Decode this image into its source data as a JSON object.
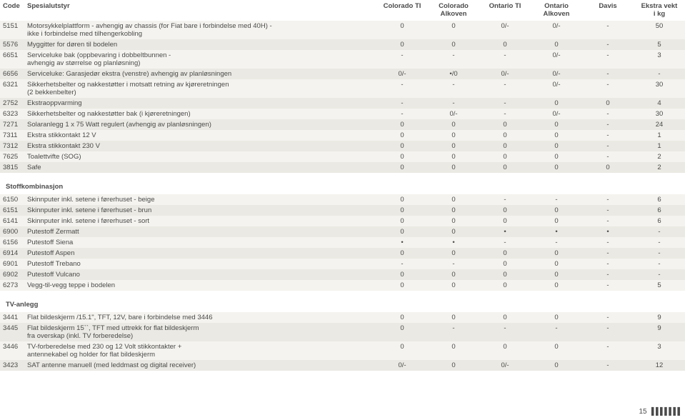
{
  "colors": {
    "odd": "#f4f3ef",
    "even": "#eae9e3",
    "text": "#4a4a4a"
  },
  "header": {
    "code": "Code",
    "spec": "Spesialutstyr",
    "cols_top": [
      "Colorado TI",
      "Colorado",
      "Ontario TI",
      "Ontario",
      "Davis",
      "Ekstra vekt"
    ],
    "cols_bot": [
      "",
      "Alkoven",
      "",
      "Alkoven",
      "",
      "i kg"
    ]
  },
  "rows1": [
    {
      "code": "5151",
      "desc": "Motorsykkelplattform - avhengig av chassis (for Fiat bare i forbindelse med 40H) -\nikke i forbindelse med tilhengerkobling",
      "v": [
        "0",
        "0",
        "0/-",
        "0/-",
        "-",
        "50"
      ]
    },
    {
      "code": "5576",
      "desc": "Myggitter for døren til bodelen",
      "v": [
        "0",
        "0",
        "0",
        "0",
        "-",
        "5"
      ]
    },
    {
      "code": "6651",
      "desc": "Serviceluke bak (oppbevaring i dobbeltbunnen -\navhengig av størrelse og planløsning)",
      "v": [
        "-",
        "-",
        "-",
        "0/-",
        "-",
        "3"
      ]
    },
    {
      "code": "6656",
      "desc": "Serviceluke: Garasjedør ekstra  (venstre) avhengig av planløsningen",
      "v": [
        "0/-",
        "•/0",
        "0/-",
        "0/-",
        "-",
        "-"
      ]
    },
    {
      "code": "6321",
      "desc": "Sikkerhetsbelter og nakkestøtter i motsatt retning av kjøreretningen\n(2 bekkenbelter)",
      "v": [
        "-",
        "-",
        "-",
        "0/-",
        "-",
        "30"
      ]
    },
    {
      "code": "2752",
      "desc": "Ekstraoppvarming",
      "v": [
        "-",
        "-",
        "-",
        "0",
        "0",
        "4"
      ]
    },
    {
      "code": "6323",
      "desc": "Sikkerhetsbelter og nakkestøtter bak (i kjøreretningen)",
      "v": [
        "-",
        "0/-",
        "-",
        "0/-",
        "-",
        "30"
      ]
    },
    {
      "code": "7271",
      "desc": "Solaranlegg 1 x 75 Watt regulert (avhengig av planløsningen)",
      "v": [
        "0",
        "0",
        "0",
        "0",
        "-",
        "24"
      ]
    },
    {
      "code": "7311",
      "desc": "Ekstra stikkontakt 12 V",
      "v": [
        "0",
        "0",
        "0",
        "0",
        "-",
        "1"
      ]
    },
    {
      "code": "7312",
      "desc": "Ekstra stikkontakt 230 V",
      "v": [
        "0",
        "0",
        "0",
        "0",
        "-",
        "1"
      ]
    },
    {
      "code": "7625",
      "desc": "Toalettvifte (SOG)",
      "v": [
        "0",
        "0",
        "0",
        "0",
        "-",
        "2"
      ]
    },
    {
      "code": "3815",
      "desc": "Safe",
      "v": [
        "0",
        "0",
        "0",
        "0",
        "0",
        "2"
      ]
    }
  ],
  "section2_title": "Stoffkombinasjon",
  "rows2": [
    {
      "code": "6150",
      "desc": "Skinnputer inkl. setene i førerhuset - beige",
      "v": [
        "0",
        "0",
        "-",
        "-",
        "-",
        "6"
      ]
    },
    {
      "code": "6151",
      "desc": "Skinnputer inkl. setene i førerhuset - brun",
      "v": [
        "0",
        "0",
        "0",
        "0",
        "-",
        "6"
      ]
    },
    {
      "code": "6141",
      "desc": "Skinnputer inkl. setene i førerhuset - sort",
      "v": [
        "0",
        "0",
        "0",
        "0",
        "-",
        "6"
      ]
    },
    {
      "code": "6900",
      "desc": "Putestoff  Zermatt",
      "v": [
        "0",
        "0",
        "•",
        "•",
        "•",
        "-"
      ]
    },
    {
      "code": "6156",
      "desc": "Putestoff  Siena",
      "v": [
        "•",
        "•",
        "-",
        "-",
        "-",
        "-"
      ]
    },
    {
      "code": "6914",
      "desc": "Putestoff  Aspen",
      "v": [
        "0",
        "0",
        "0",
        "0",
        "-",
        "-"
      ]
    },
    {
      "code": "6901",
      "desc": "Putestoff  Trebano",
      "v": [
        "-",
        "-",
        "0",
        "0",
        "-",
        "-"
      ]
    },
    {
      "code": "6902",
      "desc": "Putestoff  Vulcano",
      "v": [
        "0",
        "0",
        "0",
        "0",
        "-",
        "-"
      ]
    },
    {
      "code": "6273",
      "desc": "Vegg-til-vegg teppe i bodelen",
      "v": [
        "0",
        "0",
        "0",
        "0",
        "-",
        "5"
      ]
    }
  ],
  "section3_title": "TV-anlegg",
  "rows3": [
    {
      "code": "3441",
      "desc": "Flat bildeskjerm /15.1\", TFT, 12V, bare i forbindelse med 3446",
      "v": [
        "0",
        "0",
        "0",
        "0",
        "-",
        "9"
      ]
    },
    {
      "code": "3445",
      "desc": "Flat bildeskjerm 15``, TFT med uttrekk for flat bildeskjerm\nfra overskap (inkl. TV forberedelse)",
      "v": [
        "0",
        "-",
        "-",
        "-",
        "-",
        "9"
      ]
    },
    {
      "code": "3446",
      "desc": "TV-forberedelse med 230 og 12 Volt stikkontakter +\nantennekabel og holder for flat bildeskjerm",
      "v": [
        "0",
        "0",
        "0",
        "0",
        "-",
        "3"
      ]
    },
    {
      "code": "3423",
      "desc": "SAT antenne manuell (med leddmast og digital receiver)",
      "v": [
        "0/-",
        "0",
        "0/-",
        "0",
        "-",
        "12"
      ]
    }
  ],
  "page": "15"
}
